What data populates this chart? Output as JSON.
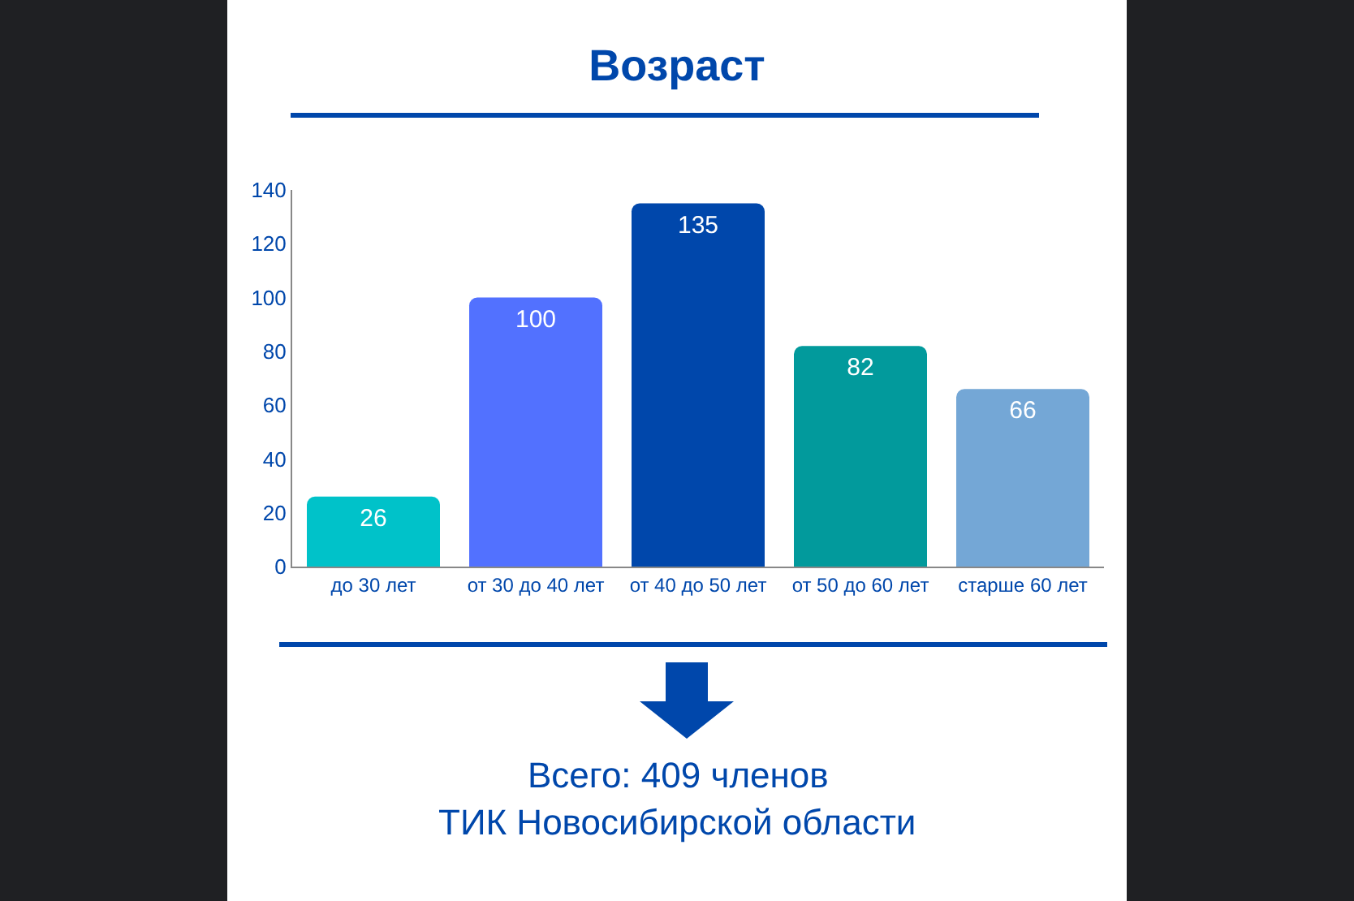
{
  "chart_data": {
    "type": "bar",
    "title": "Возраст",
    "categories": [
      "до 30 лет",
      "от 30 до 40 лет",
      "от 40 до 50 лет",
      "от 50 до 60 лет",
      "старше 60 лет"
    ],
    "values": [
      26,
      100,
      135,
      82,
      66
    ],
    "colors": [
      "#00c2c9",
      "#5271ff",
      "#0047ab",
      "#029a9c",
      "#74a7d6"
    ],
    "ylim": [
      0,
      140
    ],
    "yticks": [
      0,
      20,
      40,
      60,
      80,
      100,
      120,
      140
    ],
    "grid": false,
    "legend": false,
    "data_labels": true,
    "annotations": [
      "Всего: 409 членов",
      "ТИК Новосибирской области"
    ]
  }
}
